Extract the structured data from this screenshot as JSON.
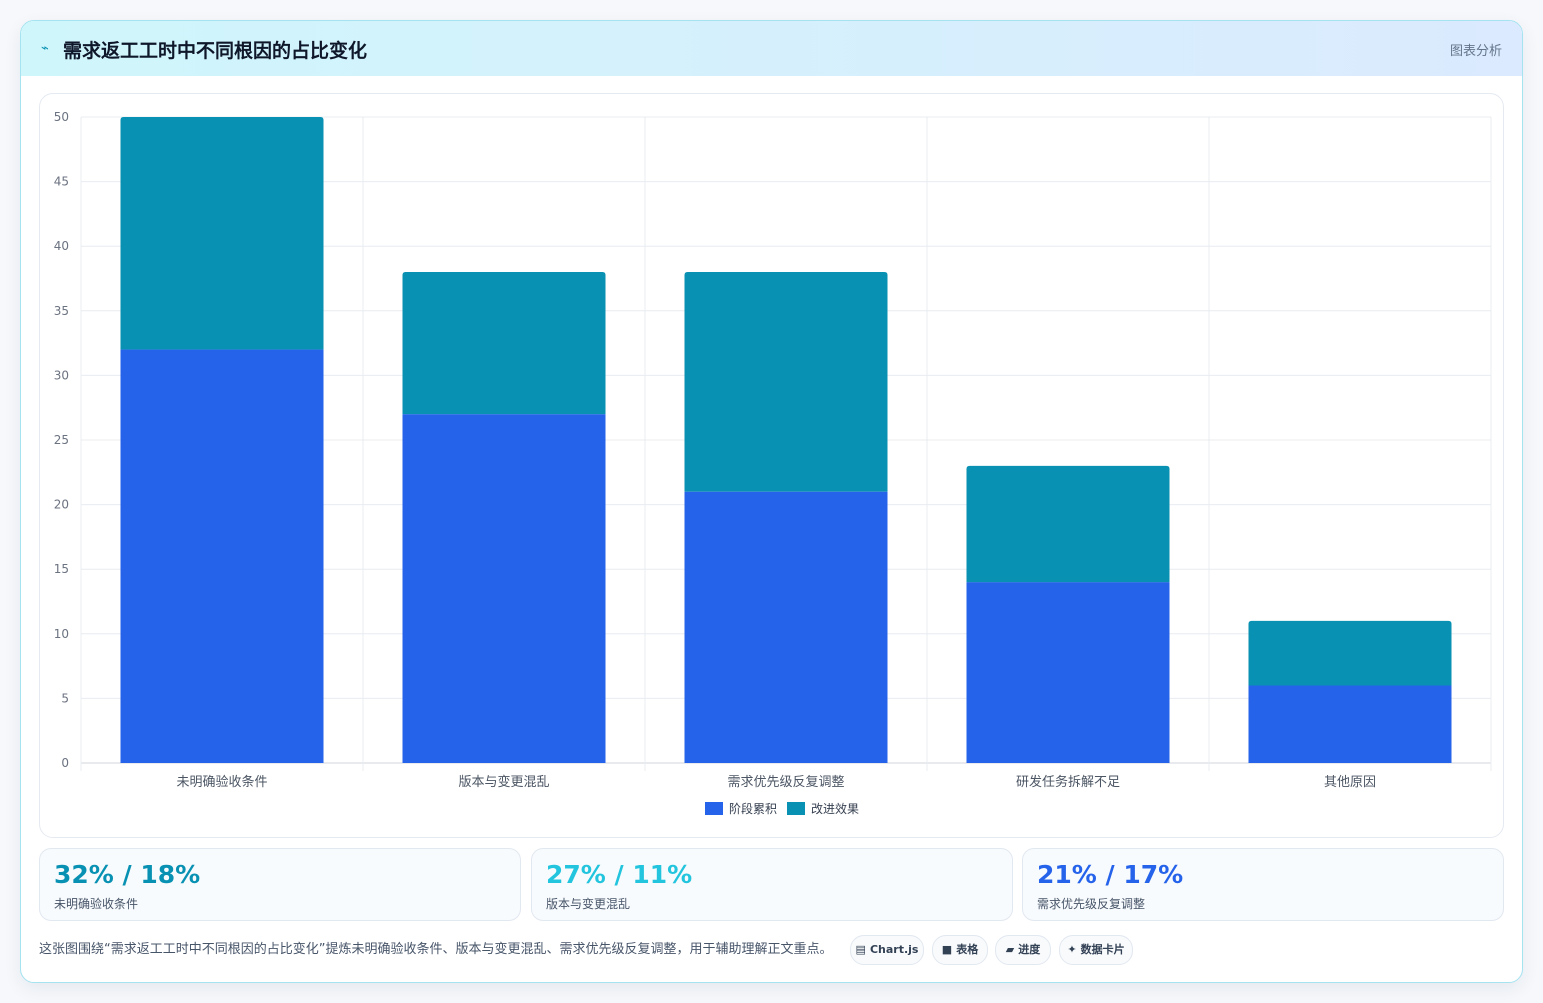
{
  "header": {
    "icon": "pulse-icon",
    "title": "需求返工工时中不同根因的占比变化",
    "tag": "图表分析"
  },
  "chart_data": {
    "type": "bar",
    "stacked": true,
    "categories": [
      "未明确验收条件",
      "版本与变更混乱",
      "需求优先级反复调整",
      "研发任务拆解不足",
      "其他原因"
    ],
    "series": [
      {
        "name": "阶段累积",
        "values": [
          32,
          27,
          21,
          14,
          6
        ],
        "color": "#2563eb"
      },
      {
        "name": "改进效果",
        "values": [
          18,
          11,
          17,
          9,
          5
        ],
        "color": "#0891b2"
      }
    ],
    "ylim": [
      0,
      50
    ],
    "yticks": [
      0,
      5,
      10,
      15,
      20,
      25,
      30,
      35,
      40,
      45,
      50
    ],
    "grid": true,
    "legend": "bottom",
    "title": "",
    "xlabel": "",
    "ylabel": ""
  },
  "stats": [
    {
      "value": "32% / 18%",
      "label": "未明确验收条件",
      "color": "#0891b2"
    },
    {
      "value": "27% / 11%",
      "label": "版本与变更混乱",
      "color": "#22c5dd"
    },
    {
      "value": "21% / 17%",
      "label": "需求优先级反复调整",
      "color": "#2563eb"
    }
  ],
  "footer": {
    "text": "这张图围绕“需求返工工时中不同根因的占比变化”提炼未明确验收条件、版本与变更混乱、需求优先级反复调整，用于辅助理解正文重点。",
    "pills": [
      {
        "icon": "▤",
        "label": "Chart.js"
      },
      {
        "icon": "■",
        "label": "表格"
      },
      {
        "icon": "▰",
        "label": "进度"
      },
      {
        "icon": "✦",
        "label": "数据卡片"
      }
    ]
  }
}
